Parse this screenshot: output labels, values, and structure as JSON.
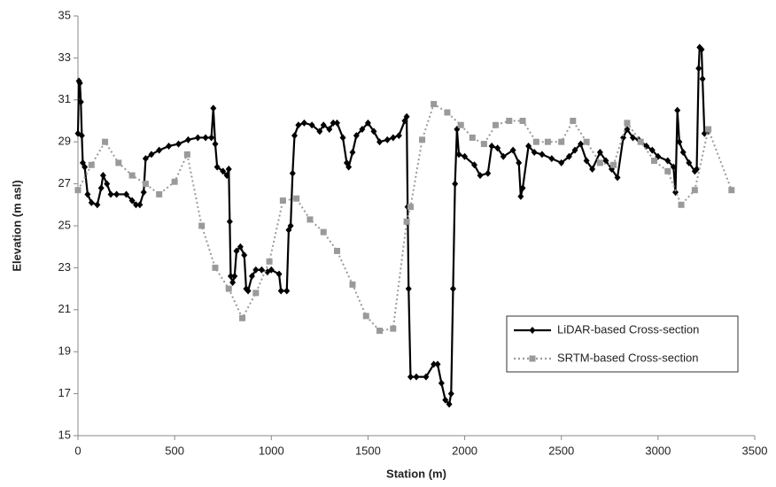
{
  "chart_data": {
    "type": "line",
    "xlabel": "Station (m)",
    "ylabel": "Elevation (m asl)",
    "xlim": [
      0,
      3500
    ],
    "xticks": [
      0,
      500,
      1000,
      1500,
      2000,
      2500,
      3000,
      3500
    ],
    "ylim": [
      15,
      35
    ],
    "yticks": [
      15,
      17,
      19,
      21,
      23,
      25,
      27,
      29,
      31,
      33,
      35
    ],
    "legend": "lower right",
    "series": [
      {
        "name": "LiDAR-based Cross-section",
        "color": "#000000",
        "style": "solid",
        "marker": "diamond",
        "x": [
          0,
          5,
          10,
          15,
          20,
          25,
          35,
          50,
          70,
          100,
          120,
          130,
          150,
          170,
          200,
          250,
          280,
          300,
          320,
          340,
          350,
          380,
          420,
          470,
          520,
          570,
          620,
          660,
          690,
          700,
          710,
          720,
          750,
          770,
          780,
          785,
          790,
          800,
          810,
          820,
          840,
          860,
          870,
          880,
          900,
          920,
          950,
          980,
          1000,
          1040,
          1050,
          1080,
          1090,
          1100,
          1110,
          1120,
          1140,
          1170,
          1210,
          1250,
          1270,
          1300,
          1320,
          1340,
          1370,
          1390,
          1400,
          1420,
          1440,
          1470,
          1500,
          1530,
          1560,
          1600,
          1630,
          1660,
          1690,
          1700,
          1705,
          1710,
          1720,
          1750,
          1800,
          1840,
          1860,
          1880,
          1900,
          1920,
          1930,
          1940,
          1950,
          1960,
          1970,
          2000,
          2050,
          2080,
          2120,
          2140,
          2170,
          2200,
          2250,
          2280,
          2290,
          2300,
          2330,
          2360,
          2400,
          2450,
          2500,
          2540,
          2570,
          2600,
          2630,
          2660,
          2700,
          2730,
          2760,
          2790,
          2820,
          2840,
          2870,
          2900,
          2940,
          2970,
          3000,
          3050,
          3080,
          3090,
          3100,
          3110,
          3130,
          3160,
          3190,
          3200,
          3210,
          3215,
          3225,
          3230,
          3240,
          3260
        ],
        "values": [
          29.4,
          31.9,
          31.8,
          30.9,
          29.3,
          28.0,
          27.8,
          26.5,
          26.1,
          26.0,
          26.8,
          27.4,
          27.0,
          26.5,
          26.5,
          26.5,
          26.2,
          26.0,
          26.0,
          26.6,
          28.2,
          28.4,
          28.6,
          28.8,
          28.9,
          29.1,
          29.2,
          29.2,
          29.2,
          30.6,
          28.9,
          27.8,
          27.6,
          27.4,
          27.7,
          25.2,
          22.6,
          22.3,
          22.6,
          23.8,
          24.0,
          23.6,
          22.0,
          21.9,
          22.6,
          22.9,
          22.9,
          22.8,
          22.9,
          22.7,
          21.9,
          21.9,
          24.8,
          25.0,
          27.5,
          29.3,
          29.8,
          29.9,
          29.8,
          29.5,
          29.8,
          29.6,
          29.9,
          29.9,
          29.2,
          28.0,
          27.8,
          28.5,
          29.3,
          29.6,
          29.9,
          29.5,
          29.0,
          29.1,
          29.2,
          29.3,
          30.0,
          30.2,
          25.9,
          22.0,
          17.8,
          17.8,
          17.8,
          18.4,
          18.4,
          17.5,
          16.7,
          16.5,
          17.0,
          22.0,
          27.0,
          29.6,
          28.4,
          28.3,
          27.9,
          27.4,
          27.5,
          28.8,
          28.7,
          28.3,
          28.6,
          28.0,
          26.4,
          26.8,
          28.8,
          28.5,
          28.4,
          28.2,
          28.0,
          28.3,
          28.6,
          28.9,
          28.1,
          27.7,
          28.5,
          28.1,
          27.7,
          27.3,
          29.2,
          29.6,
          29.2,
          29.1,
          28.8,
          28.6,
          28.3,
          28.1,
          27.8,
          26.6,
          30.5,
          29.0,
          28.5,
          28.0,
          27.6,
          27.7,
          32.5,
          33.5,
          33.4,
          32.0,
          29.4,
          29.5
        ]
      },
      {
        "name": "SRTM-based Cross-section",
        "color": "#9a9a9a",
        "style": "dotted",
        "marker": "square",
        "x": [
          0,
          70,
          140,
          210,
          280,
          350,
          420,
          500,
          565,
          640,
          710,
          780,
          850,
          920,
          990,
          1060,
          1130,
          1200,
          1270,
          1340,
          1420,
          1490,
          1560,
          1630,
          1700,
          1720,
          1780,
          1840,
          1910,
          1980,
          2040,
          2100,
          2160,
          2230,
          2300,
          2370,
          2430,
          2500,
          2560,
          2630,
          2700,
          2770,
          2840,
          2910,
          2980,
          3050,
          3120,
          3190,
          3260,
          3380
        ],
        "values": [
          26.7,
          27.9,
          29.0,
          28.0,
          27.4,
          27.0,
          26.5,
          27.1,
          28.4,
          25.0,
          23.0,
          22.0,
          20.6,
          21.8,
          23.3,
          26.2,
          26.3,
          25.3,
          24.7,
          23.8,
          22.2,
          20.7,
          20.0,
          20.1,
          25.2,
          25.9,
          29.1,
          30.8,
          30.4,
          29.8,
          29.2,
          28.9,
          29.8,
          30.0,
          30.0,
          29.0,
          29.0,
          29.0,
          30.0,
          29.0,
          28.0,
          27.9,
          29.9,
          29.0,
          28.1,
          27.6,
          26.0,
          26.7,
          29.6,
          26.7
        ]
      }
    ]
  }
}
